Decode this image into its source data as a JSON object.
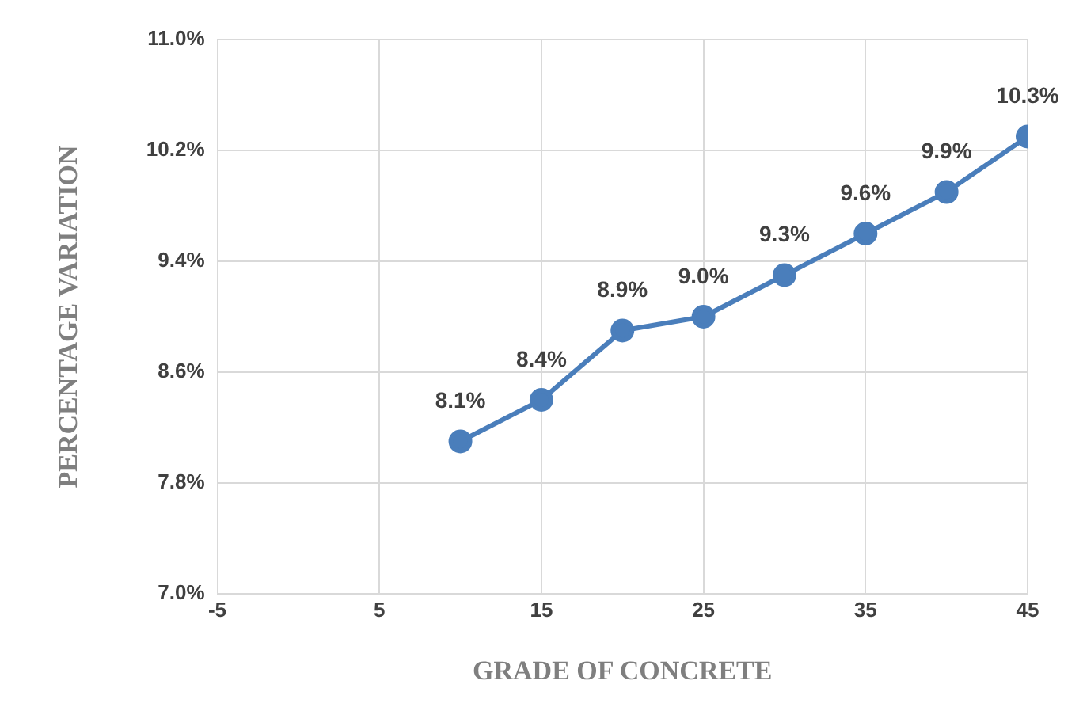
{
  "chart_data": {
    "type": "line",
    "xlabel": "GRADE OF CONCRETE",
    "ylabel": "PERCENTAGE VARIATION",
    "x": [
      10,
      15,
      20,
      25,
      30,
      35,
      40,
      45
    ],
    "series": [
      {
        "color": "#4a7ebb",
        "values": [
          8.1,
          8.4,
          8.9,
          9.0,
          9.3,
          9.6,
          9.9,
          10.3
        ],
        "value_labels": [
          "8.1%",
          "8.4%",
          "8.9%",
          "9.0%",
          "9.3%",
          "9.6%",
          "9.9%",
          "10.3%"
        ]
      }
    ],
    "xlim": [
      -5,
      45
    ],
    "xticks": [
      -5,
      5,
      15,
      25,
      35,
      45
    ],
    "ylim": [
      7.0,
      11.0
    ],
    "yticks": [
      {
        "value": 7.0,
        "label": "7.0%"
      },
      {
        "value": 7.8,
        "label": "7.8%"
      },
      {
        "value": 8.6,
        "label": "8.6%"
      },
      {
        "value": 9.4,
        "label": "9.4%"
      },
      {
        "value": 10.2,
        "label": "10.2%"
      },
      {
        "value": 11.0,
        "label": "11.0%"
      }
    ],
    "grid": true,
    "legend": false,
    "marker": "circle",
    "line_style": "solid"
  }
}
